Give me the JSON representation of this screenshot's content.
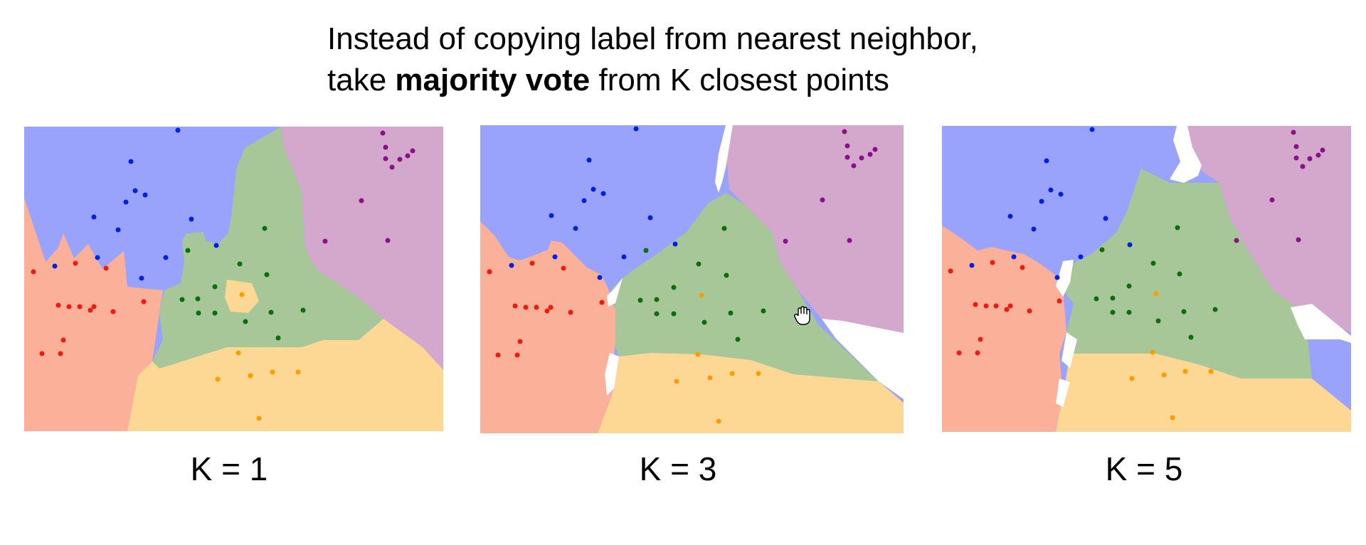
{
  "title": {
    "line1": "Instead of copying label from nearest neighbor,",
    "line2_prefix": "take ",
    "line2_bold": "majority vote",
    "line2_suffix": " from K closest points"
  },
  "colors": {
    "blue_region": "#9aa3fb",
    "purple_region": "#d3a8cc",
    "green_region": "#a7c798",
    "red_region": "#fbb09a",
    "orange_region": "#fdd894",
    "blue_point": "#0022e0",
    "purple_point": "#8b0f8b",
    "green_point": "#0b6e0b",
    "red_point": "#f11a0f",
    "orange_point": "#ff9d00"
  },
  "panels": [
    {
      "caption": "K = 1"
    },
    {
      "caption": "K = 3"
    },
    {
      "caption": "K = 5"
    }
  ]
}
